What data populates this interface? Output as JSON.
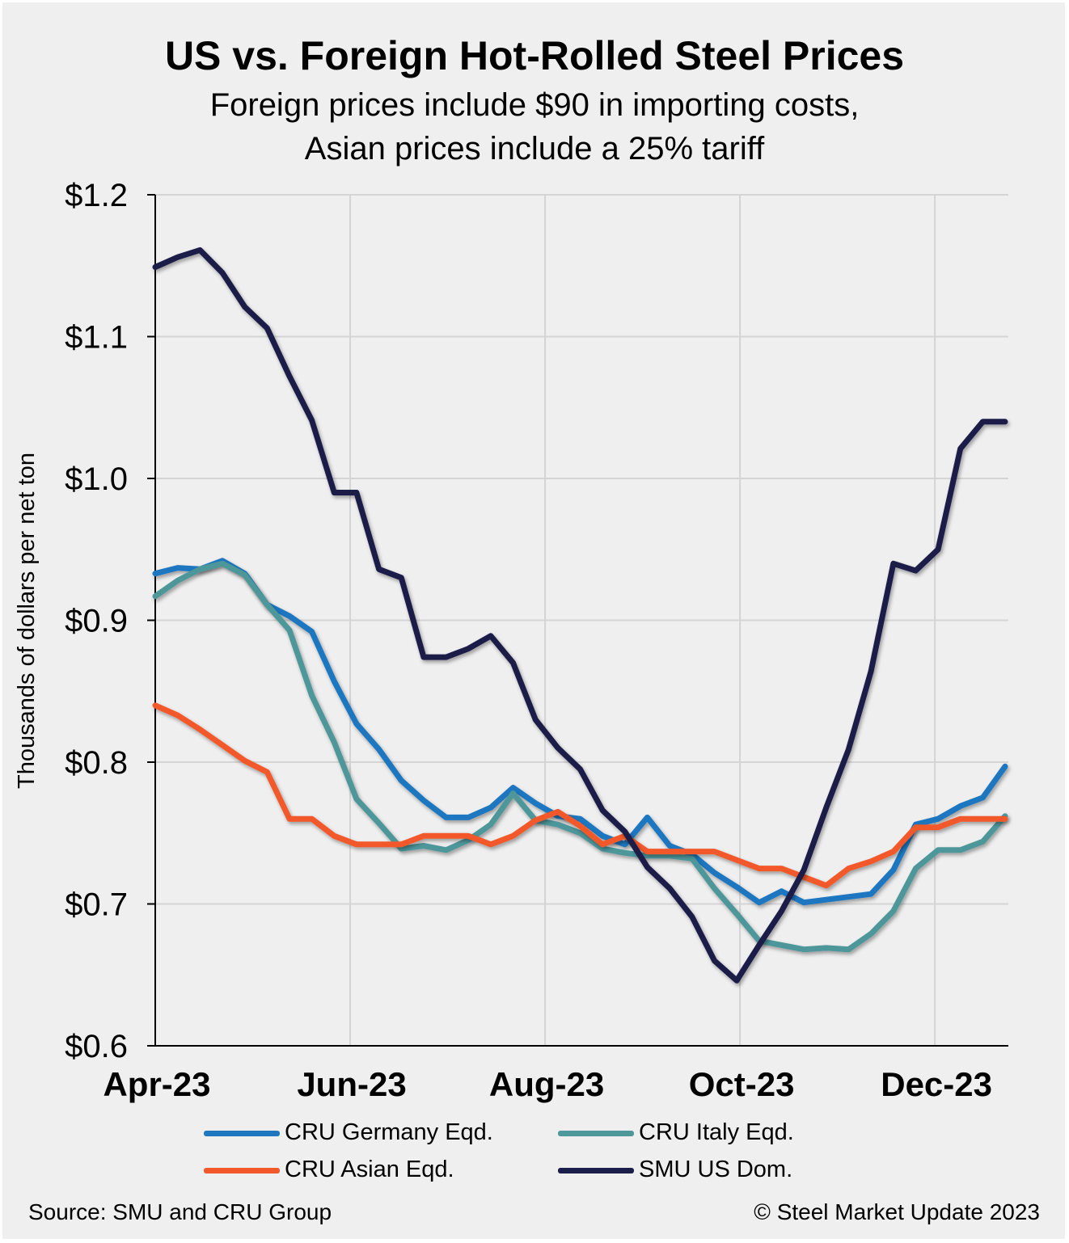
{
  "chart_data": {
    "type": "line",
    "title": "US vs. Foreign Hot-Rolled Steel Prices",
    "subtitle": [
      "Foreign prices include $90 in importing costs,",
      "Asian prices include a 25% tariff"
    ],
    "xlabel": "",
    "ylabel": "Thousands of dollars per net ton",
    "ylim": [
      0.6,
      1.2
    ],
    "yticks": [
      "$0.6",
      "$0.7",
      "$0.8",
      "$0.9",
      "$1.0",
      "$1.1",
      "$1.2"
    ],
    "xticks": [
      "Apr-23",
      "Jun-23",
      "Aug-23",
      "Oct-23",
      "Dec-23"
    ],
    "grid": "both",
    "legend": "bottom",
    "x": [
      "2023-04-01",
      "2023-04-08",
      "2023-04-15",
      "2023-04-22",
      "2023-04-29",
      "2023-05-06",
      "2023-05-13",
      "2023-05-20",
      "2023-05-27",
      "2023-06-03",
      "2023-06-10",
      "2023-06-17",
      "2023-06-24",
      "2023-07-01",
      "2023-07-08",
      "2023-07-15",
      "2023-07-22",
      "2023-07-29",
      "2023-08-05",
      "2023-08-12",
      "2023-08-19",
      "2023-08-26",
      "2023-09-02",
      "2023-09-09",
      "2023-09-16",
      "2023-09-23",
      "2023-09-30",
      "2023-10-07",
      "2023-10-14",
      "2023-10-21",
      "2023-10-28",
      "2023-11-04",
      "2023-11-11",
      "2023-11-18",
      "2023-11-25",
      "2023-12-02",
      "2023-12-09",
      "2023-12-16",
      "2023-12-23"
    ],
    "series": [
      {
        "name": "CRU Germany Eqd.",
        "color": "#1f77c0",
        "values": [
          0.933,
          0.937,
          0.936,
          0.942,
          0.933,
          0.911,
          0.903,
          0.892,
          0.857,
          0.827,
          0.809,
          0.787,
          0.773,
          0.761,
          0.761,
          0.768,
          0.782,
          0.771,
          0.762,
          0.76,
          0.748,
          0.742,
          0.761,
          0.741,
          0.735,
          0.722,
          0.712,
          0.701,
          0.709,
          0.701,
          0.703,
          0.705,
          0.707,
          0.724,
          0.756,
          0.76,
          0.769,
          0.775,
          0.797
        ]
      },
      {
        "name": "CRU Italy Eqd.",
        "color": "#4e979b",
        "values": [
          0.917,
          0.928,
          0.936,
          0.94,
          0.932,
          0.911,
          0.893,
          0.847,
          0.814,
          0.774,
          0.757,
          0.739,
          0.741,
          0.738,
          0.745,
          0.756,
          0.778,
          0.759,
          0.756,
          0.75,
          0.739,
          0.736,
          0.734,
          0.734,
          0.732,
          0.711,
          0.693,
          0.674,
          0.671,
          0.668,
          0.669,
          0.668,
          0.679,
          0.695,
          0.725,
          0.738,
          0.738,
          0.744,
          0.762
        ]
      },
      {
        "name": "CRU Asian Eqd.",
        "color": "#f2592a",
        "values": [
          0.84,
          0.833,
          0.823,
          0.812,
          0.801,
          0.793,
          0.76,
          0.76,
          0.748,
          0.742,
          0.742,
          0.742,
          0.748,
          0.748,
          0.748,
          0.742,
          0.748,
          0.759,
          0.765,
          0.755,
          0.742,
          0.748,
          0.737,
          0.737,
          0.737,
          0.737,
          0.731,
          0.725,
          0.725,
          0.719,
          0.713,
          0.725,
          0.73,
          0.737,
          0.754,
          0.754,
          0.76,
          0.76,
          0.76
        ]
      },
      {
        "name": "SMU US Dom.",
        "color": "#1b1d4a",
        "values": [
          1.149,
          1.156,
          1.161,
          1.145,
          1.121,
          1.106,
          1.072,
          1.041,
          0.99,
          0.99,
          0.936,
          0.93,
          0.874,
          0.874,
          0.88,
          0.889,
          0.87,
          0.83,
          0.81,
          0.795,
          0.766,
          0.751,
          0.726,
          0.711,
          0.691,
          0.66,
          0.646,
          0.671,
          0.695,
          0.724,
          0.768,
          0.809,
          0.864,
          0.94,
          0.935,
          0.95,
          1.021,
          1.04,
          1.04
        ]
      }
    ],
    "source": "Source: SMU and CRU Group",
    "copyright": "© Steel Market Update 2023"
  }
}
